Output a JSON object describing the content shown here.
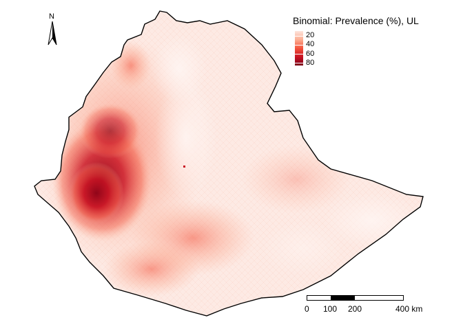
{
  "legend": {
    "title": "Binomial: Prevalence (%), UL",
    "ticks": [
      "20",
      "40",
      "60",
      "80"
    ],
    "colors": [
      "#fde4dc",
      "#fcae93",
      "#f4543c",
      "#c81222",
      "#7a0019"
    ]
  },
  "north_arrow": {
    "label": "N"
  },
  "scale_bar": {
    "labels": [
      "0",
      "100",
      "200",
      "400 km"
    ]
  },
  "map": {
    "land_color": "#fdeae4",
    "hotspot_color": "#c81222",
    "border_color": "#000000"
  }
}
